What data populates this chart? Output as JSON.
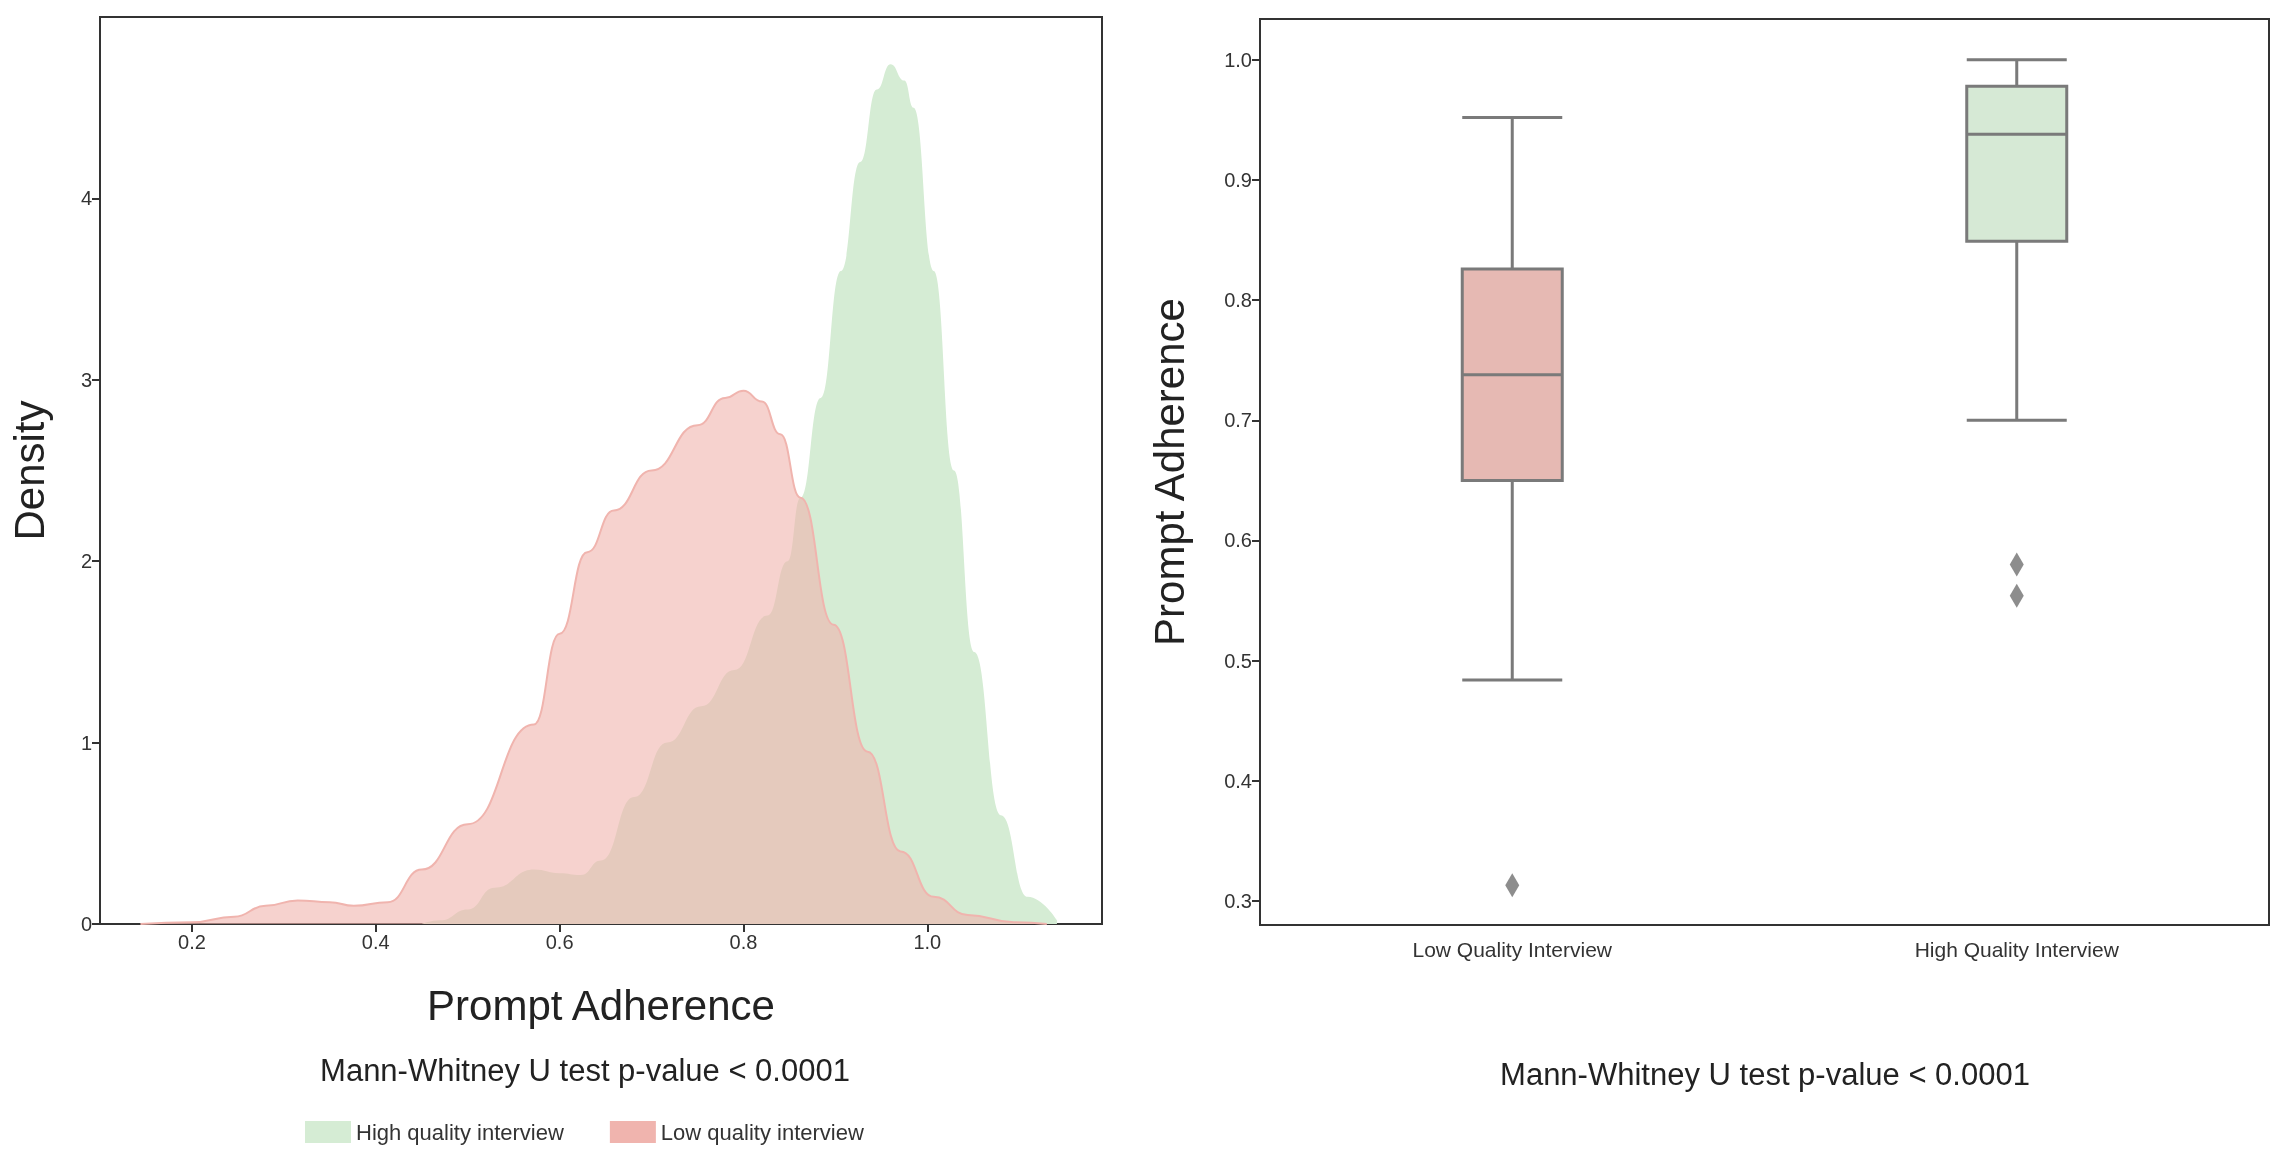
{
  "chart_data": [
    {
      "type": "area",
      "xlabel": "Prompt Adherence",
      "ylabel": "Density",
      "annotations": [
        "Mann-Whitney U test p-value < 0.0001"
      ],
      "xlim": [
        0.1,
        1.19
      ],
      "ylim": [
        0,
        5
      ],
      "xticks": [
        0.2,
        0.4,
        0.6,
        0.8,
        {
          "value": 1,
          "label": "1.0"
        }
      ],
      "yticks": [
        0,
        1,
        2,
        3,
        4
      ],
      "grid": false,
      "legend": "bottom",
      "series": [
        {
          "name": "High quality interview",
          "color": "#d5ecd4",
          "x": [
            0.45,
            0.47,
            0.5,
            0.529,
            0.572,
            0.6,
            0.623,
            0.645,
            0.681,
            0.717,
            0.754,
            0.79,
            0.826,
            0.848,
            0.862,
            0.884,
            0.906,
            0.927,
            0.945,
            0.96,
            0.975,
            0.985,
            1.007,
            1.029,
            1.051,
            1.08,
            1.109,
            1.141
          ],
          "values": [
            0,
            0.02,
            0.08,
            0.2,
            0.3,
            0.28,
            0.27,
            0.35,
            0.7,
            1.0,
            1.2,
            1.4,
            1.7,
            2.0,
            2.35,
            2.9,
            3.6,
            4.2,
            4.6,
            4.74,
            4.65,
            4.5,
            3.6,
            2.5,
            1.5,
            0.6,
            0.15,
            0.02
          ]
        },
        {
          "name": "Low quality interview",
          "color": "#f0b4ae",
          "x": [
            0.144,
            0.2,
            0.246,
            0.28,
            0.315,
            0.35,
            0.376,
            0.413,
            0.45,
            0.5,
            0.572,
            0.6,
            0.63,
            0.659,
            0.7,
            0.75,
            0.78,
            0.8,
            0.82,
            0.84,
            0.862,
            0.898,
            0.935,
            0.971,
            1.007,
            1.044,
            1.094,
            1.13
          ],
          "values": [
            0,
            0.01,
            0.04,
            0.1,
            0.13,
            0.12,
            0.1,
            0.12,
            0.3,
            0.55,
            1.1,
            1.6,
            2.05,
            2.28,
            2.5,
            2.75,
            2.9,
            2.94,
            2.88,
            2.7,
            2.35,
            1.65,
            0.95,
            0.4,
            0.15,
            0.05,
            0.01,
            0
          ]
        }
      ]
    },
    {
      "type": "box",
      "ylabel": "Prompt Adherence",
      "annotations": [
        "Mann-Whitney U test p-value < 0.0001"
      ],
      "categories": [
        "Low Quality Interview",
        "High Quality Interview"
      ],
      "ylim": [
        0.28,
        1.034
      ],
      "yticks": [
        0.3,
        0.4,
        0.5,
        0.6,
        0.7,
        0.8,
        0.9,
        {
          "value": 1,
          "label": "1.0"
        }
      ],
      "grid": false,
      "marker": "diamond",
      "colors": [
        "#e6b9b3",
        "#d6e9d5"
      ],
      "boxes": [
        {
          "low": 0.484,
          "q1": 0.65,
          "median": 0.738,
          "q3": 0.826,
          "high": 0.952,
          "outliers": [
            0.313
          ]
        },
        {
          "low": 0.7,
          "q1": 0.849,
          "median": 0.938,
          "q3": 0.978,
          "high": 1.0,
          "outliers": [
            0.58,
            0.554
          ]
        }
      ]
    }
  ]
}
